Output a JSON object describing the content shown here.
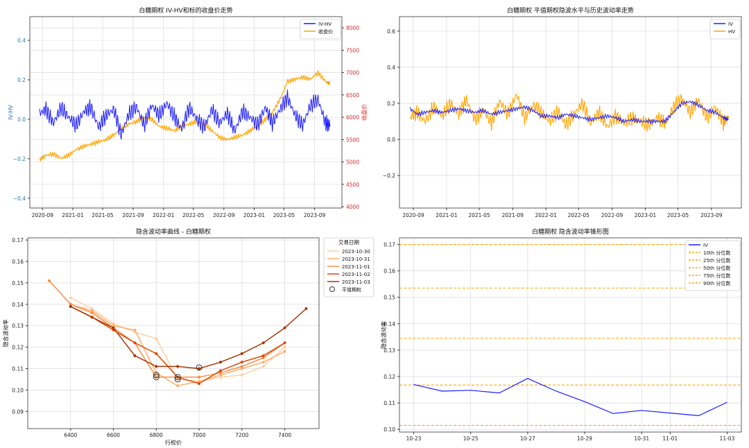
{
  "chart_data": [
    {
      "type": "line",
      "title": "白糖期权 IV-HV和标的收盘价走势",
      "ylabel": "IV-HV",
      "y2label": "收盘价",
      "xlim": [
        "2020-07-12",
        "2023-12-20"
      ],
      "ylim": [
        -0.45,
        0.52
      ],
      "y2lim": [
        3970,
        8250
      ],
      "yticks": [
        -0.4,
        -0.2,
        0.0,
        0.2,
        0.4
      ],
      "yticklabels": [
        "−0.4",
        "−0.2",
        "0.0",
        "0.2",
        "0.4"
      ],
      "y2ticks": [
        4000,
        4500,
        5000,
        5500,
        6000,
        6500,
        7000,
        7500,
        8000
      ],
      "xticks": [
        "2020-09-01",
        "2021-01-01",
        "2021-05-01",
        "2021-09-01",
        "2022-01-01",
        "2022-05-01",
        "2022-09-01",
        "2023-01-01",
        "2023-05-01",
        "2023-09-01"
      ],
      "xticklabels": [
        "2020-09",
        "2021-01",
        "2021-05",
        "2021-09",
        "2022-01",
        "2022-05",
        "2022-09",
        "2023-01",
        "2023-05",
        "2023-09"
      ],
      "grid": true,
      "legend_position": "top-right",
      "colors": {
        "iv_hv": "#1a1aff",
        "price": "#ffa500",
        "y2axis": "#d62728",
        "yaxis": "#1f77b4"
      },
      "series": [
        {
          "name": "IV-HV",
          "axis": "left",
          "color": "#1a1aff",
          "x": [
            "2020-08-20",
            "2020-09-15",
            "2020-10-15",
            "2020-11-15",
            "2020-12-15",
            "2021-01-15",
            "2021-02-15",
            "2021-03-15",
            "2021-04-15",
            "2021-05-15",
            "2021-06-15",
            "2021-07-15",
            "2021-08-15",
            "2021-09-15",
            "2021-10-15",
            "2021-11-15",
            "2021-12-15",
            "2022-01-15",
            "2022-02-15",
            "2022-03-15",
            "2022-04-15",
            "2022-05-15",
            "2022-06-15",
            "2022-07-15",
            "2022-08-15",
            "2022-09-15",
            "2022-10-15",
            "2022-11-15",
            "2022-12-15",
            "2023-01-15",
            "2023-02-15",
            "2023-03-15",
            "2023-04-15",
            "2023-05-15",
            "2023-06-15",
            "2023-07-15",
            "2023-08-15",
            "2023-09-15",
            "2023-10-15",
            "2023-11-03"
          ],
          "y": [
            0.03,
            0.05,
            -0.02,
            0.06,
            0.01,
            -0.03,
            0.04,
            0.06,
            -0.04,
            0.02,
            0.05,
            -0.08,
            0.03,
            0.06,
            -0.03,
            0.07,
            0.02,
            0.08,
            0.01,
            -0.05,
            0.06,
            0.0,
            -0.04,
            0.05,
            -0.02,
            0.03,
            -0.06,
            0.04,
            0.01,
            -0.03,
            0.06,
            -0.02,
            0.05,
            0.11,
            0.02,
            -0.03,
            0.07,
            0.1,
            -0.02,
            -0.03
          ]
        },
        {
          "name": "收盘价",
          "axis": "right",
          "color": "#ffa500",
          "x": [
            "2020-08-20",
            "2020-09-15",
            "2020-10-15",
            "2020-11-15",
            "2020-12-15",
            "2021-01-15",
            "2021-02-15",
            "2021-03-15",
            "2021-04-15",
            "2021-05-15",
            "2021-06-15",
            "2021-07-15",
            "2021-08-15",
            "2021-09-15",
            "2021-10-15",
            "2021-11-15",
            "2021-12-15",
            "2022-01-15",
            "2022-02-15",
            "2022-03-15",
            "2022-04-15",
            "2022-05-15",
            "2022-06-15",
            "2022-07-15",
            "2022-08-15",
            "2022-09-15",
            "2022-10-15",
            "2022-11-15",
            "2022-12-15",
            "2023-01-15",
            "2023-02-15",
            "2023-03-15",
            "2023-04-15",
            "2023-05-15",
            "2023-06-15",
            "2023-07-15",
            "2023-08-15",
            "2023-09-15",
            "2023-10-15",
            "2023-11-03"
          ],
          "y": [
            5050,
            5150,
            5180,
            5080,
            5150,
            5280,
            5350,
            5400,
            5450,
            5500,
            5600,
            5750,
            5850,
            5900,
            6000,
            5950,
            5800,
            5750,
            5700,
            5800,
            5850,
            5900,
            5850,
            5700,
            5550,
            5500,
            5550,
            5600,
            5700,
            5800,
            5950,
            6100,
            6400,
            6800,
            6850,
            6900,
            6850,
            7000,
            6800,
            6750
          ]
        }
      ]
    },
    {
      "type": "line",
      "title": "白糖期权 平值期权隐波水平与历史波动率走势",
      "xlim": [
        "2020-07-12",
        "2023-12-20"
      ],
      "ylim": [
        -0.38,
        0.68
      ],
      "yticks": [
        -0.2,
        0.0,
        0.2,
        0.4,
        0.6
      ],
      "yticklabels": [
        "−0.2",
        "0.0",
        "0.2",
        "0.4",
        "0.6"
      ],
      "xticks": [
        "2020-09-01",
        "2021-01-01",
        "2021-05-01",
        "2021-09-01",
        "2022-01-01",
        "2022-05-01",
        "2022-09-01",
        "2023-01-01",
        "2023-05-01",
        "2023-09-01"
      ],
      "xticklabels": [
        "2020-09",
        "2021-01",
        "2021-05",
        "2021-09",
        "2022-01",
        "2022-05",
        "2022-09",
        "2023-01",
        "2023-05",
        "2023-09"
      ],
      "grid": true,
      "legend_position": "top-right",
      "series": [
        {
          "name": "IV",
          "color": "#1a1aff",
          "x": [
            "2020-08-20",
            "2020-09-15",
            "2020-10-15",
            "2020-11-15",
            "2020-12-15",
            "2021-01-15",
            "2021-02-15",
            "2021-03-15",
            "2021-04-15",
            "2021-05-15",
            "2021-06-15",
            "2021-07-15",
            "2021-08-15",
            "2021-09-15",
            "2021-10-15",
            "2021-11-15",
            "2021-12-15",
            "2022-01-15",
            "2022-02-15",
            "2022-03-15",
            "2022-04-15",
            "2022-05-15",
            "2022-06-15",
            "2022-07-15",
            "2022-08-15",
            "2022-09-15",
            "2022-10-15",
            "2022-11-15",
            "2022-12-15",
            "2023-01-15",
            "2023-02-15",
            "2023-03-15",
            "2023-04-15",
            "2023-05-15",
            "2023-06-15",
            "2023-07-15",
            "2023-08-15",
            "2023-09-15",
            "2023-10-15",
            "2023-11-03"
          ],
          "y": [
            0.17,
            0.14,
            0.15,
            0.16,
            0.15,
            0.16,
            0.17,
            0.16,
            0.15,
            0.16,
            0.14,
            0.15,
            0.16,
            0.17,
            0.18,
            0.16,
            0.13,
            0.13,
            0.12,
            0.14,
            0.13,
            0.12,
            0.11,
            0.12,
            0.13,
            0.12,
            0.1,
            0.11,
            0.1,
            0.1,
            0.1,
            0.1,
            0.15,
            0.2,
            0.21,
            0.19,
            0.16,
            0.15,
            0.12,
            0.11
          ]
        },
        {
          "name": "HV",
          "color": "#ffa500",
          "x": [
            "2020-08-20",
            "2020-09-15",
            "2020-10-15",
            "2020-11-15",
            "2020-12-15",
            "2021-01-15",
            "2021-02-15",
            "2021-03-15",
            "2021-04-15",
            "2021-05-15",
            "2021-06-15",
            "2021-07-15",
            "2021-08-15",
            "2021-09-15",
            "2021-10-15",
            "2021-11-15",
            "2021-12-15",
            "2022-01-15",
            "2022-02-15",
            "2022-03-15",
            "2022-04-15",
            "2022-05-15",
            "2022-06-15",
            "2022-07-15",
            "2022-08-15",
            "2022-09-15",
            "2022-10-15",
            "2022-11-15",
            "2022-12-15",
            "2023-01-15",
            "2023-02-15",
            "2023-03-15",
            "2023-04-15",
            "2023-05-15",
            "2023-06-15",
            "2023-07-15",
            "2023-08-15",
            "2023-09-15",
            "2023-10-15",
            "2023-11-03"
          ],
          "y": [
            0.12,
            0.15,
            0.1,
            0.18,
            0.13,
            0.2,
            0.14,
            0.22,
            0.11,
            0.16,
            0.09,
            0.21,
            0.14,
            0.25,
            0.12,
            0.19,
            0.15,
            0.1,
            0.16,
            0.08,
            0.14,
            0.2,
            0.09,
            0.15,
            0.07,
            0.13,
            0.09,
            0.12,
            0.1,
            0.08,
            0.12,
            0.09,
            0.18,
            0.23,
            0.15,
            0.22,
            0.12,
            0.18,
            0.09,
            0.13
          ]
        }
      ]
    },
    {
      "type": "line",
      "title": "隐含波动率曲线 - 白糖期权",
      "xlabel": "行权价",
      "ylabel": "隐含波动率",
      "xlim": [
        6200,
        7560
      ],
      "ylim": [
        0.082,
        0.171
      ],
      "xticks": [
        6400,
        6600,
        6800,
        7000,
        7200,
        7400
      ],
      "yticks": [
        0.09,
        0.1,
        0.11,
        0.12,
        0.13,
        0.14,
        0.15,
        0.16,
        0.17
      ],
      "yticklabels": [
        "0.09",
        "0.10",
        "0.11",
        "0.12",
        "0.13",
        "0.14",
        "0.15",
        "0.16",
        "0.17"
      ],
      "grid": true,
      "legend_position": "outside-right",
      "legend_title": "交易日期",
      "atm_label": "平值期权",
      "series": [
        {
          "name": "2023-10-30",
          "color": "#fdd0a2",
          "x": [
            6400,
            6500,
            6600,
            6700,
            6800,
            6900,
            7000,
            7100,
            7200,
            7300,
            7400
          ],
          "y": [
            0.143,
            0.138,
            0.131,
            0.127,
            0.124,
            0.105,
            0.104,
            0.106,
            0.107,
            0.111,
            0.12
          ]
        },
        {
          "name": "2023-10-31",
          "color": "#fdae6b",
          "x": [
            6400,
            6500,
            6600,
            6700,
            6800,
            6900,
            7000,
            7100,
            7200,
            7300,
            7400
          ],
          "y": [
            0.14,
            0.137,
            0.13,
            0.128,
            0.108,
            0.102,
            0.104,
            0.107,
            0.11,
            0.113,
            0.118
          ]
        },
        {
          "name": "2023-11-01",
          "color": "#f68d45",
          "x": [
            6300,
            6400,
            6500,
            6600,
            6700,
            6800,
            6900,
            7000,
            7100,
            7200,
            7300,
            7400
          ],
          "y": [
            0.151,
            0.14,
            0.136,
            0.129,
            0.122,
            0.106,
            0.106,
            0.106,
            0.108,
            0.111,
            0.115,
            0.122
          ]
        },
        {
          "name": "2023-11-02",
          "color": "#d94801",
          "x": [
            6400,
            6500,
            6600,
            6700,
            6800,
            6900,
            7000,
            7100,
            7200,
            7300,
            7400
          ],
          "y": [
            0.139,
            0.134,
            0.128,
            0.122,
            0.117,
            0.106,
            0.103,
            0.109,
            0.113,
            0.116,
            0.122
          ]
        },
        {
          "name": "2023-11-03",
          "color": "#a63603",
          "x": [
            6400,
            6500,
            6600,
            6700,
            6800,
            6900,
            7000,
            7100,
            7200,
            7300,
            7400,
            7500
          ],
          "y": [
            0.139,
            0.134,
            0.129,
            0.116,
            0.111,
            0.111,
            0.11,
            0.113,
            0.117,
            0.122,
            0.129,
            0.138
          ]
        }
      ],
      "atm_points": [
        {
          "x": 6800,
          "y": 0.106
        },
        {
          "x": 6800,
          "y": 0.107
        },
        {
          "x": 6900,
          "y": 0.105
        },
        {
          "x": 6900,
          "y": 0.106
        },
        {
          "x": 7000,
          "y": 0.1105
        }
      ]
    },
    {
      "type": "line",
      "title": "白糖期权 隐含波动率锥形图",
      "ylabel": "隐含波动率",
      "xlim": [
        -0.5,
        11.5
      ],
      "ylim": [
        0.099,
        0.1725
      ],
      "xticks": [
        0,
        2,
        4,
        6,
        8,
        9,
        11
      ],
      "xticklabels": [
        "10-23",
        "10-25",
        "10-27",
        "10-29",
        "10-31",
        "11-01",
        "11-03"
      ],
      "yticks": [
        0.1,
        0.11,
        0.12,
        0.13,
        0.14,
        0.15,
        0.16,
        0.17
      ],
      "yticklabels": [
        "0.10",
        "0.11",
        "0.12",
        "0.13",
        "0.14",
        "0.15",
        "0.16",
        "0.17"
      ],
      "grid": true,
      "legend_position": "top-right",
      "series": [
        {
          "name": "IV",
          "color": "#1a1aff",
          "x": [
            0,
            1,
            2,
            3,
            4,
            5,
            6,
            7,
            8,
            9,
            10,
            11
          ],
          "y": [
            0.117,
            0.1145,
            0.1148,
            0.1138,
            0.1193,
            0.1145,
            0.1105,
            0.106,
            0.1072,
            0.1062,
            0.1052,
            0.1103
          ]
        }
      ],
      "hlines": [
        {
          "name": "10th 分位数",
          "y": 0.1015,
          "color": "#ffa500"
        },
        {
          "name": "25th 分位数",
          "y": 0.1168,
          "color": "#ffa500"
        },
        {
          "name": "50th 分位数",
          "y": 0.1345,
          "color": "#ffa500"
        },
        {
          "name": "75th 分位数",
          "y": 0.1535,
          "color": "#ffa500"
        },
        {
          "name": "90th 分位数",
          "y": 0.17,
          "color": "#ffa500"
        }
      ]
    }
  ]
}
